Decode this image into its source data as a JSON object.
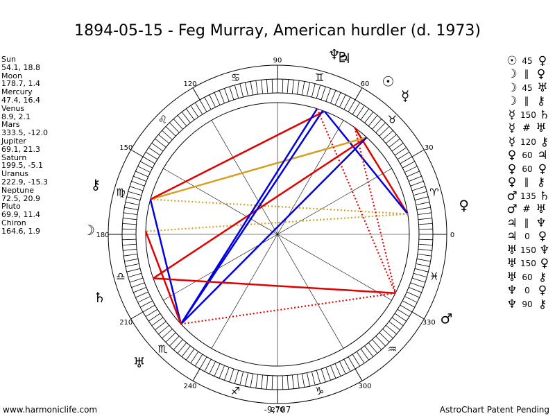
{
  "title": "1894-05-15 - Feg Murray, American hurdler (d. 1973)",
  "positions": [
    {
      "name": "Sun",
      "value": "54.1, 18.8"
    },
    {
      "name": "Moon",
      "value": "178.7, 1.4"
    },
    {
      "name": "Mercury",
      "value": "47.4, 16.4"
    },
    {
      "name": "Venus",
      "value": "8.9, 2.1"
    },
    {
      "name": "Mars",
      "value": "333.5, -12.0"
    },
    {
      "name": "Jupiter",
      "value": "69.1, 21.3"
    },
    {
      "name": "Saturn",
      "value": "199.5, -5.1"
    },
    {
      "name": "Uranus",
      "value": "222.9, -15.3"
    },
    {
      "name": "Neptune",
      "value": "72.5, 20.9"
    },
    {
      "name": "Pluto",
      "value": "69.9, 11.4"
    },
    {
      "name": "Chiron",
      "value": "164.6, 1.9"
    }
  ],
  "aspects": [
    {
      "p1": "☉",
      "asp": "45",
      "p2": "♀"
    },
    {
      "p1": "☽",
      "asp": "∥",
      "p2": "♀"
    },
    {
      "p1": "☽",
      "asp": "45",
      "p2": "♅"
    },
    {
      "p1": "☽",
      "asp": "∥",
      "p2": "⚷"
    },
    {
      "p1": "☿",
      "asp": "150",
      "p2": "♄"
    },
    {
      "p1": "☿",
      "asp": "#",
      "p2": "♅"
    },
    {
      "p1": "☿",
      "asp": "120",
      "p2": "⚷"
    },
    {
      "p1": "♀",
      "asp": "60",
      "p2": "♃"
    },
    {
      "p1": "♀",
      "asp": "60",
      "p2": "♀"
    },
    {
      "p1": "♀",
      "asp": "∥",
      "p2": "⚷"
    },
    {
      "p1": "♂",
      "asp": "135",
      "p2": "♄"
    },
    {
      "p1": "♂",
      "asp": "#",
      "p2": "♅"
    },
    {
      "p1": "♃",
      "asp": "∥",
      "p2": "♆"
    },
    {
      "p1": "♃",
      "asp": "0",
      "p2": "♀"
    },
    {
      "p1": "♅",
      "asp": "150",
      "p2": "♆"
    },
    {
      "p1": "♅",
      "asp": "150",
      "p2": "♀"
    },
    {
      "p1": "♅",
      "asp": "60",
      "p2": "⚷"
    },
    {
      "p1": "♆",
      "asp": "0",
      "p2": "♀"
    },
    {
      "p1": "♆",
      "asp": "90",
      "p2": "⚷"
    }
  ],
  "wheel": {
    "degree_labels": [
      "0",
      "30",
      "60",
      "90",
      "120",
      "150",
      "180",
      "210",
      "240",
      "270",
      "300",
      "330"
    ],
    "signs": [
      {
        "name": "aries",
        "glyph": "♈",
        "lon": 15
      },
      {
        "name": "taurus",
        "glyph": "♉",
        "lon": 45
      },
      {
        "name": "gemini",
        "glyph": "♊",
        "lon": 75
      },
      {
        "name": "cancer",
        "glyph": "♋",
        "lon": 105
      },
      {
        "name": "leo",
        "glyph": "♌",
        "lon": 135
      },
      {
        "name": "virgo",
        "glyph": "♍",
        "lon": 165
      },
      {
        "name": "libra",
        "glyph": "♎",
        "lon": 195
      },
      {
        "name": "scorpio",
        "glyph": "♏",
        "lon": 225
      },
      {
        "name": "sagittarius",
        "glyph": "♐",
        "lon": 255
      },
      {
        "name": "capricorn",
        "glyph": "♑",
        "lon": 285
      },
      {
        "name": "aquarius",
        "glyph": "♒",
        "lon": 315
      },
      {
        "name": "pisces",
        "glyph": "♓",
        "lon": 345
      }
    ],
    "planets": [
      {
        "name": "sun",
        "glyph": "☉",
        "lon": 54.1
      },
      {
        "name": "moon",
        "glyph": "☽",
        "lon": 178.7
      },
      {
        "name": "mercury",
        "glyph": "☿",
        "lon": 47.4
      },
      {
        "name": "venus",
        "glyph": "♀",
        "lon": 8.9
      },
      {
        "name": "mars",
        "glyph": "♂",
        "lon": 333.5
      },
      {
        "name": "jupiter",
        "glyph": "♃",
        "lon": 69.1
      },
      {
        "name": "saturn",
        "glyph": "♄",
        "lon": 199.5
      },
      {
        "name": "uranus",
        "glyph": "♅",
        "lon": 222.9
      },
      {
        "name": "neptune",
        "glyph": "♆",
        "lon": 72.5
      },
      {
        "name": "pluto",
        "glyph": "♇",
        "lon": 69.9
      },
      {
        "name": "chiron",
        "glyph": "⚷",
        "lon": 164.6
      }
    ],
    "lines": [
      {
        "a": 8.9,
        "b": 54.1,
        "color": "#e00000",
        "style": "solid"
      },
      {
        "a": 8.9,
        "b": 69.1,
        "color": "#0000e0",
        "style": "solid"
      },
      {
        "a": 8.9,
        "b": 164.6,
        "color": "#d4a020",
        "style": "dotted"
      },
      {
        "a": 8.9,
        "b": 178.7,
        "color": "#d4a020",
        "style": "dotted"
      },
      {
        "a": 47.4,
        "b": 199.5,
        "color": "#e00000",
        "style": "solid"
      },
      {
        "a": 47.4,
        "b": 164.6,
        "color": "#d4a020",
        "style": "solid"
      },
      {
        "a": 47.4,
        "b": 222.9,
        "color": "#0000e0",
        "style": "solid"
      },
      {
        "a": 54.1,
        "b": 333.5,
        "color": "#e00000",
        "style": "dotted"
      },
      {
        "a": 69.1,
        "b": 164.6,
        "color": "#e00000",
        "style": "solid"
      },
      {
        "a": 72.5,
        "b": 222.9,
        "color": "#0000e0",
        "style": "solid"
      },
      {
        "a": 69.9,
        "b": 222.9,
        "color": "#0000e0",
        "style": "solid"
      },
      {
        "a": 72.5,
        "b": 333.5,
        "color": "#e00000",
        "style": "dotted"
      },
      {
        "a": 164.6,
        "b": 222.9,
        "color": "#0000e0",
        "style": "solid"
      },
      {
        "a": 178.7,
        "b": 222.9,
        "color": "#e00000",
        "style": "solid"
      },
      {
        "a": 199.5,
        "b": 333.5,
        "color": "#e00000",
        "style": "solid"
      },
      {
        "a": 222.9,
        "b": 333.5,
        "color": "#e00000",
        "style": "dotted"
      }
    ]
  },
  "footer": {
    "left": "www.harmoniclife.com",
    "center": "-9,707",
    "right": "AstroChart Patent Pending"
  }
}
